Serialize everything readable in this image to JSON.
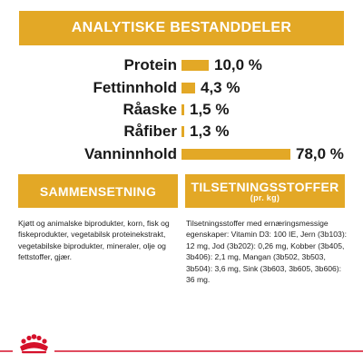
{
  "analytics": {
    "title": "ANALYTISKE BESTANDDELER",
    "items": [
      {
        "label": "Protein",
        "value": "10,0 %",
        "percent": 10.0
      },
      {
        "label": "Fettinnhold",
        "value": "4,3 %",
        "percent": 4.3
      },
      {
        "label": "Råaske",
        "value": "1,5 %",
        "percent": 1.5
      },
      {
        "label": "Råfiber",
        "value": "1,3 %",
        "percent": 1.3
      },
      {
        "label": "Vanninnhold",
        "value": "78,0 %",
        "percent": 78.0
      }
    ]
  },
  "composition": {
    "title": "SAMMENSETNING",
    "text": "Kjøtt og animalske biprodukter, korn, fisk og fiskeprodukter, vegetabilsk proteinekstrakt, vegetabilske biprodukter, mineraler, olje og fettstoffer, gjær."
  },
  "additives": {
    "title": "TILSETNINGSSTOFFER",
    "subtitle": "(pr. kg)",
    "text": "Tilsetningsstoffer med ernæringsmessige egenskaper: Vitamin D3: 100 IE, Jern (3b103): 12 mg, Jod (3b202): 0,26 mg, Kobber (3b405, 3b406): 2,1 mg, Mangan (3b502, 3b503, 3b504): 3,6 mg, Sink (3b603, 3b605, 3b606): 36 mg."
  },
  "colors": {
    "accent": "#e3a826",
    "brand_red": "#d5102a"
  },
  "icons": {
    "logo": "royal-crown-logo-icon"
  }
}
